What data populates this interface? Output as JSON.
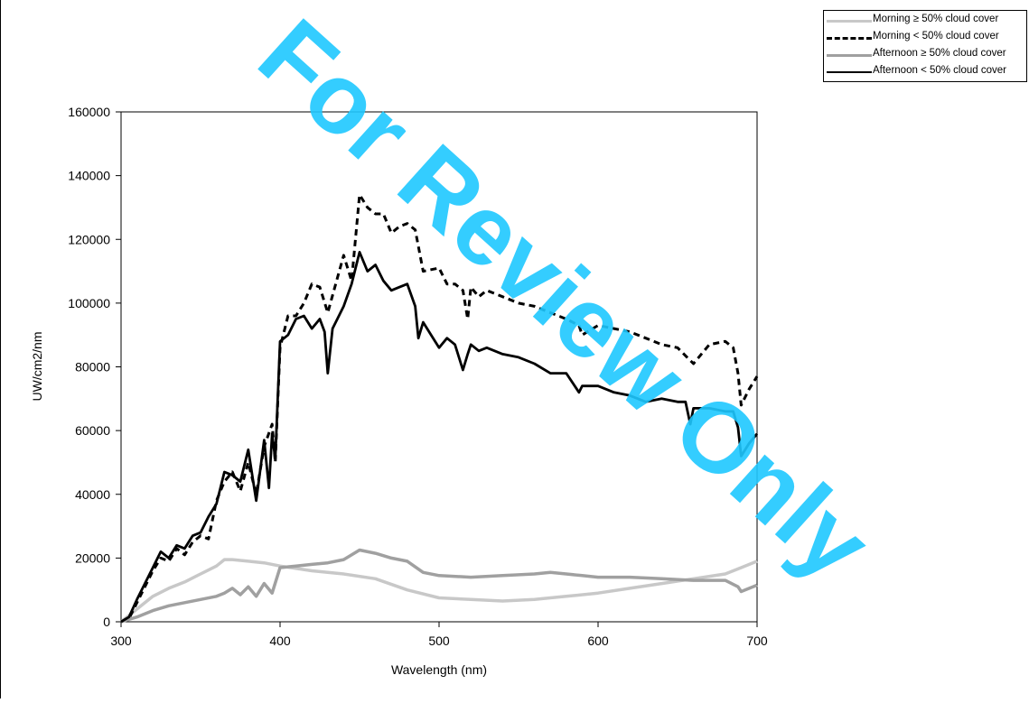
{
  "watermark": "For Review Only",
  "colors": {
    "watermark": "#1ec8ff",
    "morning_cloudy": "#c8c8c8",
    "morning_clear": "#000000",
    "afternoon_cloudy": "#a0a0a0",
    "afternoon_clear": "#000000"
  },
  "chart_data": {
    "type": "line",
    "title": "",
    "xlabel": "Wavelength (nm)",
    "ylabel": "UW/cm2/nm",
    "xlim": [
      300,
      700
    ],
    "ylim": [
      0,
      160000
    ],
    "xticks": [
      300,
      400,
      500,
      600,
      700
    ],
    "yticks": [
      0,
      20000,
      40000,
      60000,
      80000,
      100000,
      120000,
      140000,
      160000
    ],
    "xtick_labels": [
      "300",
      "400",
      "500",
      "600",
      "700"
    ],
    "ytick_labels": [
      "0",
      "20000",
      "40000",
      "60000",
      "80000",
      "100000",
      "120000",
      "140000",
      "160000"
    ],
    "grid": false,
    "legend_position": "top-right, outside plot",
    "series": [
      {
        "name": "Morning ≥ 50% cloud cover",
        "style": "light-gray-thick",
        "x": [
          300,
          310,
          320,
          330,
          340,
          350,
          360,
          365,
          370,
          380,
          390,
          400,
          420,
          440,
          460,
          480,
          500,
          520,
          540,
          560,
          580,
          600,
          620,
          640,
          660,
          680,
          690,
          700
        ],
        "y": [
          0,
          4000,
          8000,
          10500,
          12500,
          15000,
          17500,
          19500,
          19500,
          19000,
          18500,
          17500,
          16000,
          15000,
          13500,
          10000,
          7500,
          7000,
          6500,
          7000,
          8000,
          9000,
          10500,
          12000,
          13500,
          15000,
          17000,
          19000
        ]
      },
      {
        "name": "Morning < 50% cloud cover",
        "style": "dashed",
        "x": [
          300,
          305,
          310,
          315,
          320,
          325,
          330,
          335,
          340,
          345,
          350,
          355,
          360,
          365,
          370,
          375,
          380,
          385,
          390,
          395,
          397,
          400,
          405,
          410,
          415,
          420,
          425,
          430,
          435,
          440,
          445,
          450,
          455,
          460,
          465,
          470,
          475,
          480,
          485,
          490,
          500,
          505,
          510,
          515,
          518,
          520,
          525,
          530,
          540,
          550,
          560,
          570,
          580,
          588,
          590,
          600,
          610,
          620,
          630,
          640,
          650,
          660,
          670,
          680,
          685,
          688,
          690,
          695,
          700
        ],
        "y": [
          0,
          1000,
          6000,
          11000,
          16000,
          20000,
          19000,
          23000,
          21000,
          25000,
          27000,
          26000,
          38000,
          44000,
          47000,
          41000,
          50000,
          40000,
          55000,
          62000,
          50000,
          86000,
          96000,
          96000,
          100000,
          106000,
          105000,
          97000,
          106000,
          115000,
          107000,
          134000,
          130000,
          128000,
          128000,
          122000,
          124000,
          125000,
          123000,
          110000,
          111000,
          106000,
          106000,
          104000,
          95000,
          105000,
          102000,
          104000,
          102000,
          100000,
          99000,
          97000,
          95000,
          93000,
          90000,
          93000,
          92000,
          91000,
          89000,
          87000,
          86000,
          81000,
          87000,
          88000,
          86000,
          78000,
          68000,
          73000,
          77000
        ]
      },
      {
        "name": "Afternoon ≥ 50% cloud cover",
        "style": "gray-thick",
        "x": [
          300,
          310,
          320,
          330,
          340,
          350,
          360,
          365,
          370,
          375,
          380,
          385,
          390,
          395,
          400,
          410,
          420,
          430,
          440,
          450,
          460,
          470,
          480,
          490,
          500,
          520,
          540,
          560,
          570,
          580,
          590,
          600,
          620,
          640,
          660,
          680,
          688,
          690,
          700
        ],
        "y": [
          0,
          1500,
          3500,
          5000,
          6000,
          7000,
          8000,
          9000,
          10500,
          8500,
          11000,
          8000,
          12000,
          9000,
          17000,
          17500,
          18000,
          18500,
          19500,
          22500,
          21500,
          20000,
          19000,
          15500,
          14500,
          14000,
          14500,
          15000,
          15500,
          15000,
          14500,
          14000,
          14000,
          13500,
          13000,
          13000,
          11000,
          9500,
          11500
        ]
      },
      {
        "name": "Afternoon < 50% cloud cover",
        "style": "solid-black",
        "x": [
          300,
          305,
          310,
          315,
          320,
          325,
          330,
          335,
          340,
          345,
          350,
          355,
          360,
          365,
          370,
          375,
          380,
          385,
          390,
          393,
          395,
          397,
          400,
          405,
          410,
          415,
          420,
          425,
          428,
          430,
          433,
          436,
          440,
          445,
          450,
          455,
          460,
          465,
          470,
          475,
          480,
          485,
          487,
          490,
          495,
          500,
          505,
          510,
          515,
          518,
          520,
          525,
          530,
          540,
          550,
          560,
          570,
          580,
          588,
          590,
          600,
          610,
          620,
          630,
          640,
          650,
          655,
          658,
          660,
          670,
          680,
          685,
          688,
          690,
          695,
          700
        ],
        "y": [
          0,
          1500,
          7000,
          12000,
          17000,
          22000,
          20000,
          24000,
          23000,
          27000,
          28000,
          33000,
          37000,
          47000,
          46000,
          44000,
          54000,
          38000,
          57000,
          42000,
          59000,
          51000,
          88000,
          90000,
          95000,
          96000,
          92000,
          95000,
          91000,
          78000,
          92000,
          95000,
          99000,
          106000,
          116000,
          110000,
          112000,
          107000,
          104000,
          105000,
          106000,
          99000,
          89000,
          94000,
          90000,
          86000,
          89000,
          87000,
          79000,
          84000,
          87000,
          85000,
          86000,
          84000,
          83000,
          81000,
          78000,
          78000,
          72000,
          74000,
          74000,
          72000,
          71000,
          69000,
          70000,
          69000,
          69000,
          62000,
          67000,
          67000,
          66000,
          66000,
          61000,
          52000,
          56000,
          59000
        ]
      }
    ]
  }
}
